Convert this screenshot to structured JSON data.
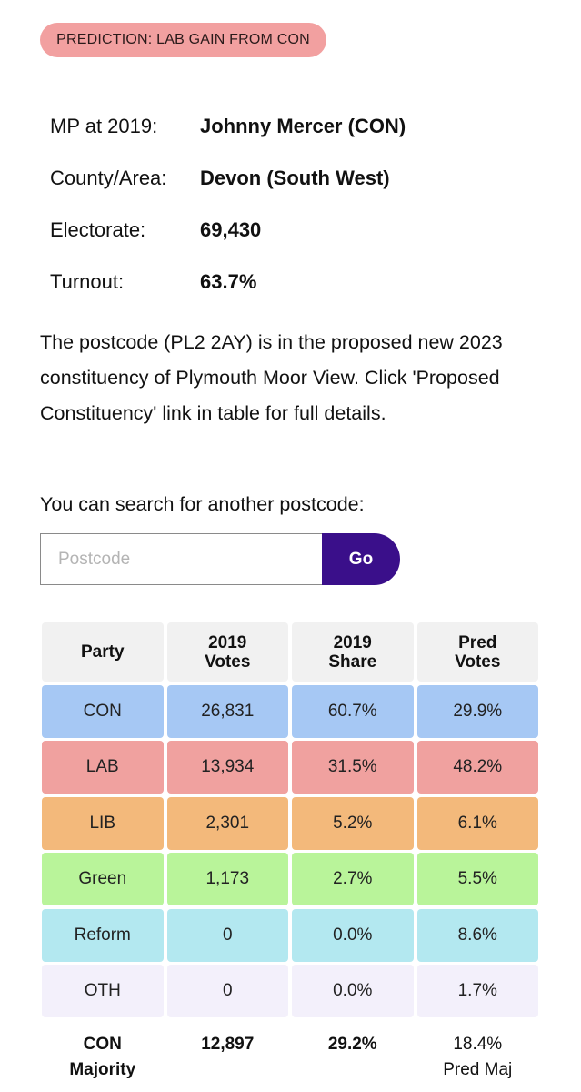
{
  "prediction_badge": "PREDICTION: LAB GAIN FROM CON",
  "info": [
    {
      "label": "MP at 2019:",
      "value": "Johnny Mercer  (CON)"
    },
    {
      "label": "County/Area:",
      "value": "Devon (South West)"
    },
    {
      "label": "Electorate:",
      "value": "69,430"
    },
    {
      "label": "Turnout:",
      "value": "63.7%"
    }
  ],
  "description": "The postcode (PL2 2AY) is in the proposed new 2023 constituency of Plymouth Moor View. Click 'Proposed Constituency' link in table for full details.",
  "search": {
    "label": "You can search for another postcode:",
    "placeholder": "Postcode",
    "button": "Go"
  },
  "table": {
    "headers": [
      [
        "Party"
      ],
      [
        "2019",
        "Votes"
      ],
      [
        "2019",
        "Share"
      ],
      [
        "Pred",
        "Votes"
      ]
    ],
    "rows": [
      {
        "party": "CON",
        "votes_2019": "26,831",
        "share_2019": "60.7%",
        "pred_votes": "29.9%",
        "color": "#a6c8f4"
      },
      {
        "party": "LAB",
        "votes_2019": "13,934",
        "share_2019": "31.5%",
        "pred_votes": "48.2%",
        "color": "#f0a19f"
      },
      {
        "party": "LIB",
        "votes_2019": "2,301",
        "share_2019": "5.2%",
        "pred_votes": "6.1%",
        "color": "#f3b97b"
      },
      {
        "party": "Green",
        "votes_2019": "1,173",
        "share_2019": "2.7%",
        "pred_votes": "5.5%",
        "color": "#b9f49a"
      },
      {
        "party": "Reform",
        "votes_2019": "0",
        "share_2019": "0.0%",
        "pred_votes": "8.6%",
        "color": "#b3e8f0"
      },
      {
        "party": "OTH",
        "votes_2019": "0",
        "share_2019": "0.0%",
        "pred_votes": "1.7%",
        "color": "#f3f0fb"
      }
    ],
    "footer": {
      "label_line1": "CON",
      "label_line2": "Majority",
      "votes": "12,897",
      "share": "29.2%",
      "pred_line1": "18.4%",
      "pred_line2": "Pred Maj"
    }
  }
}
